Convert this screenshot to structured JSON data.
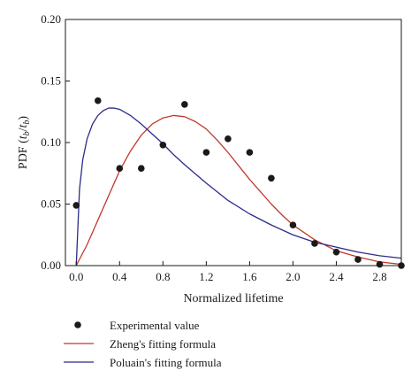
{
  "chart_data": {
    "type": "scatter",
    "xlabel": "Normalized lifetime",
    "ylabel": {
      "prefix": "PDF (",
      "t1": "t",
      "sub1": "b",
      "slash": "/",
      "t2": "t",
      "sub2": "b",
      "suffix": ")"
    },
    "xlim": [
      -0.1,
      3.0
    ],
    "ylim": [
      0.0,
      0.2
    ],
    "xticks": [
      0.0,
      0.4,
      0.8,
      1.2,
      1.6,
      2.0,
      2.4,
      2.8
    ],
    "xtick_labels": [
      "0.0",
      "0.4",
      "0.8",
      "1.2",
      "1.6",
      "2.0",
      "2.4",
      "2.8"
    ],
    "yticks": [
      0.0,
      0.05,
      0.1,
      0.15,
      0.2
    ],
    "ytick_labels": [
      "0.00",
      "0.05",
      "0.10",
      "0.15",
      "0.20"
    ],
    "grid": false,
    "legend_position": "below",
    "series": [
      {
        "name": "Experimental value",
        "kind": "scatter",
        "color": "#1a1a1a",
        "x": [
          0.0,
          0.2,
          0.4,
          0.6,
          0.8,
          1.0,
          1.2,
          1.4,
          1.6,
          1.8,
          2.0,
          2.2,
          2.4,
          2.6,
          2.8,
          3.0
        ],
        "y": [
          0.049,
          0.134,
          0.079,
          0.079,
          0.098,
          0.131,
          0.092,
          0.103,
          0.092,
          0.071,
          0.033,
          0.018,
          0.011,
          0.005,
          0.001,
          0.0
        ]
      },
      {
        "name": "Zheng's fitting formula",
        "kind": "line",
        "color": "#c0392b",
        "x": [
          0.0,
          0.1,
          0.2,
          0.3,
          0.4,
          0.5,
          0.6,
          0.7,
          0.8,
          0.9,
          1.0,
          1.1,
          1.2,
          1.3,
          1.4,
          1.5,
          1.6,
          1.7,
          1.8,
          1.9,
          2.0,
          2.2,
          2.4,
          2.6,
          2.8,
          3.0
        ],
        "y": [
          0.0,
          0.017,
          0.037,
          0.057,
          0.077,
          0.093,
          0.106,
          0.115,
          0.12,
          0.122,
          0.121,
          0.117,
          0.111,
          0.102,
          0.092,
          0.081,
          0.07,
          0.06,
          0.05,
          0.041,
          0.033,
          0.021,
          0.012,
          0.007,
          0.003,
          0.001
        ]
      },
      {
        "name": "Poluain's fitting formula",
        "kind": "line",
        "color": "#2b2b8c",
        "x": [
          0.0,
          0.03,
          0.06,
          0.1,
          0.15,
          0.2,
          0.25,
          0.3,
          0.35,
          0.4,
          0.5,
          0.6,
          0.7,
          0.8,
          0.9,
          1.0,
          1.2,
          1.4,
          1.6,
          1.8,
          2.0,
          2.2,
          2.4,
          2.6,
          2.8,
          3.0
        ],
        "y": [
          0.0,
          0.062,
          0.086,
          0.103,
          0.115,
          0.122,
          0.126,
          0.128,
          0.128,
          0.127,
          0.122,
          0.115,
          0.107,
          0.099,
          0.09,
          0.082,
          0.067,
          0.053,
          0.042,
          0.033,
          0.025,
          0.019,
          0.015,
          0.011,
          0.008,
          0.006
        ]
      }
    ]
  }
}
